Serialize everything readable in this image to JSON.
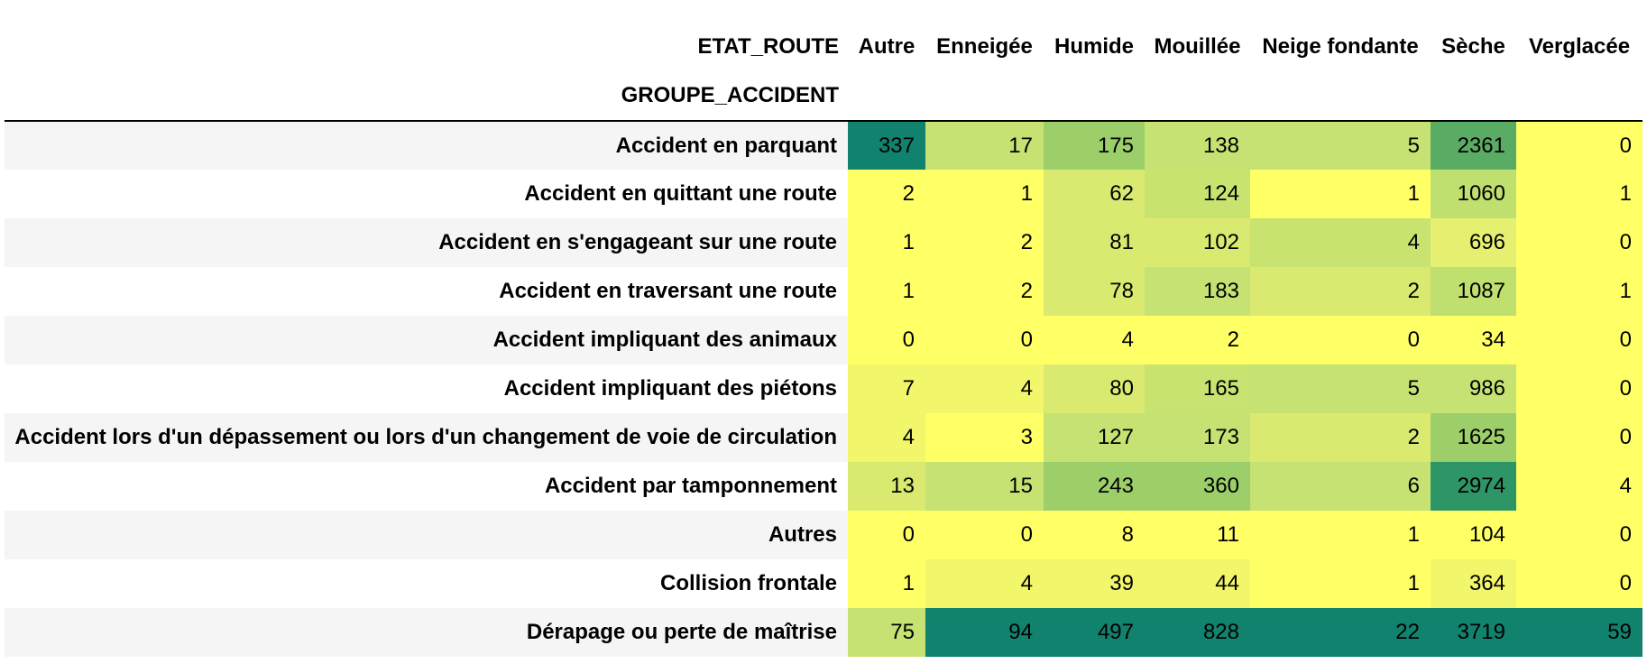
{
  "table": {
    "columns_axis_label": "ETAT_ROUTE",
    "rows_axis_label": "GROUPE_ACCIDENT",
    "columns": [
      "Autre",
      "Enneigée",
      "Humide",
      "Mouillée",
      "Neige fondante",
      "Sèche",
      "Verglacée"
    ],
    "rows": [
      {
        "label": "Accident en parquant",
        "values": [
          "337",
          "17",
          "175",
          "138",
          "5",
          "2361",
          "0"
        ],
        "colors": [
          "#11826e",
          "#c6e272",
          "#9ccf69",
          "#c6e272",
          "#c6e272",
          "#5aab64",
          "#ffff66"
        ]
      },
      {
        "label": "Accident en quittant une route",
        "values": [
          "2",
          "1",
          "62",
          "124",
          "1",
          "1060",
          "1"
        ],
        "colors": [
          "#ffff66",
          "#ffff66",
          "#daea71",
          "#c9e371",
          "#ffff66",
          "#bfdf6f",
          "#ffff66"
        ]
      },
      {
        "label": "Accident en s'engageant sur une route",
        "values": [
          "1",
          "2",
          "81",
          "102",
          "4",
          "696",
          "0"
        ],
        "colors": [
          "#ffff66",
          "#ffff66",
          "#daea71",
          "#daea71",
          "#c9e371",
          "#e6f070",
          "#ffff66"
        ]
      },
      {
        "label": "Accident en traversant une route",
        "values": [
          "1",
          "2",
          "78",
          "183",
          "2",
          "1087",
          "1"
        ],
        "colors": [
          "#ffff66",
          "#ffff66",
          "#daea71",
          "#c6e272",
          "#daea71",
          "#bfdf6f",
          "#ffff66"
        ]
      },
      {
        "label": "Accident impliquant des animaux",
        "values": [
          "0",
          "0",
          "4",
          "2",
          "0",
          "34",
          "0"
        ],
        "colors": [
          "#ffff66",
          "#ffff66",
          "#ffff66",
          "#ffff66",
          "#ffff66",
          "#ffff66",
          "#ffff66"
        ]
      },
      {
        "label": "Accident impliquant des piétons",
        "values": [
          "7",
          "4",
          "80",
          "165",
          "5",
          "986",
          "0"
        ],
        "colors": [
          "#f2f66a",
          "#f2f66a",
          "#daea71",
          "#c9e371",
          "#c6e272",
          "#c6e272",
          "#ffff66"
        ]
      },
      {
        "label": "Accident lors d'un dépassement ou lors d'un changement de voie de circulation",
        "values": [
          "4",
          "3",
          "127",
          "173",
          "2",
          "1625",
          "0"
        ],
        "colors": [
          "#f2f66a",
          "#ffff66",
          "#c6e272",
          "#c6e272",
          "#daea71",
          "#9ccf69",
          "#ffff66"
        ]
      },
      {
        "label": "Accident par tamponnement",
        "values": [
          "13",
          "15",
          "243",
          "360",
          "6",
          "2974",
          "4"
        ],
        "colors": [
          "#daea71",
          "#c6e272",
          "#9ccf69",
          "#9ccf69",
          "#c6e272",
          "#2e9566",
          "#ffff66"
        ]
      },
      {
        "label": "Autres",
        "values": [
          "0",
          "0",
          "8",
          "11",
          "1",
          "104",
          "0"
        ],
        "colors": [
          "#ffff66",
          "#ffff66",
          "#ffff66",
          "#ffff66",
          "#ffff66",
          "#ffff66",
          "#ffff66"
        ]
      },
      {
        "label": "Collision frontale",
        "values": [
          "1",
          "4",
          "39",
          "44",
          "1",
          "364",
          "0"
        ],
        "colors": [
          "#ffff66",
          "#f2f66a",
          "#f2f66a",
          "#f2f66a",
          "#ffff66",
          "#f2f66a",
          "#ffff66"
        ]
      },
      {
        "label": "Dérapage ou perte de maîtrise",
        "values": [
          "75",
          "94",
          "497",
          "828",
          "22",
          "3719",
          "59"
        ],
        "colors": [
          "#c6e272",
          "#11826e",
          "#11826e",
          "#11826e",
          "#11826e",
          "#11826e",
          "#11826e"
        ]
      }
    ]
  }
}
